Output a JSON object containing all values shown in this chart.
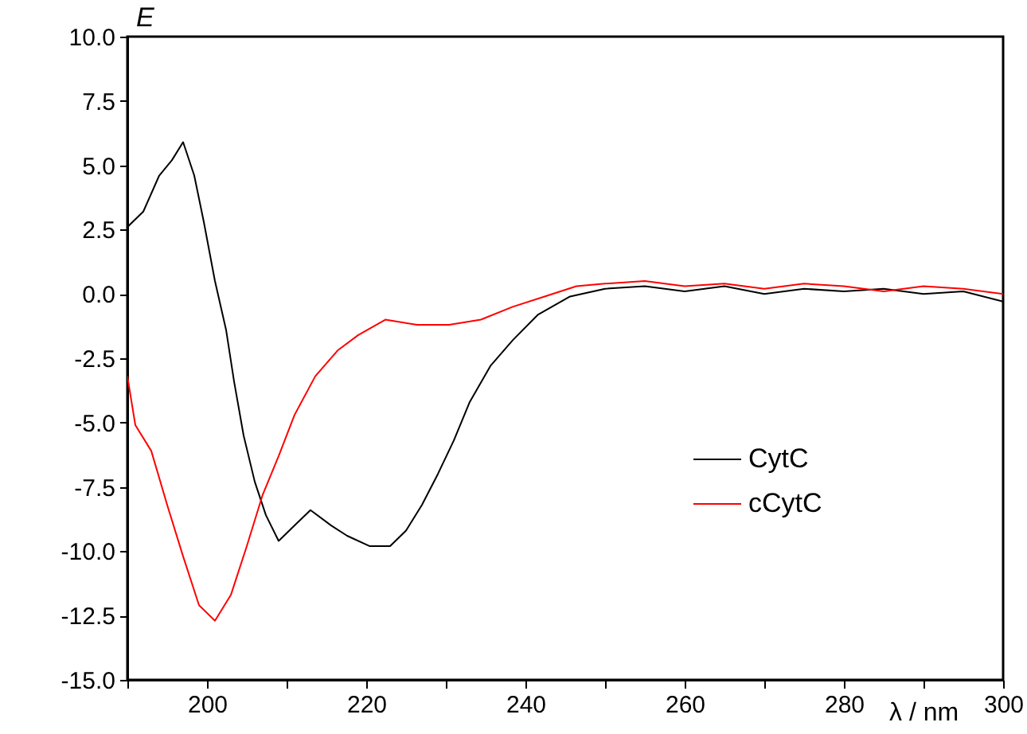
{
  "chart_data": {
    "type": "line",
    "xlabel": "λ / nm",
    "ylabel": "E",
    "xlim": [
      190,
      300
    ],
    "ylim": [
      -15,
      10
    ],
    "xticks": [
      {
        "value": 190,
        "label": null
      },
      200,
      {
        "value": 210,
        "label": null
      },
      220,
      {
        "value": 230,
        "label": null
      },
      240,
      {
        "value": 250,
        "label": null
      },
      260,
      {
        "value": 270,
        "label": null
      },
      280,
      {
        "value": 290,
        "label": null
      },
      300
    ],
    "yticks": [
      {
        "value": -15,
        "label": "-15.0"
      },
      {
        "value": -12.5,
        "label": "-12.5"
      },
      {
        "value": -10,
        "label": "-10.0"
      },
      {
        "value": -7.5,
        "label": "-7.5"
      },
      {
        "value": -5,
        "label": "-5.0"
      },
      {
        "value": -2.5,
        "label": "-2.5"
      },
      {
        "value": 0,
        "label": "0.0"
      },
      {
        "value": 2.5,
        "label": "2.5"
      },
      {
        "value": 5,
        "label": "5.0"
      },
      {
        "value": 7.5,
        "label": "7.5"
      },
      {
        "value": 10,
        "label": "10.0"
      }
    ],
    "grid": false,
    "legend": "right",
    "line_style": "solid",
    "marker": "none",
    "series": [
      {
        "name": "CytC",
        "color": "#000000",
        "x": [
          190,
          192,
          194,
          195.6,
          197,
          198.4,
          199.6,
          201,
          202.4,
          203.4,
          204.6,
          206,
          207.4,
          209,
          211,
          213,
          215.6,
          217.6,
          220.4,
          223,
          225,
          227,
          229,
          231,
          233,
          235.6,
          238.4,
          241.6,
          245.6,
          250,
          255,
          260,
          265,
          270,
          275,
          280,
          285,
          290,
          295,
          300
        ],
        "values": [
          2.6,
          3.2,
          4.6,
          5.2,
          5.9,
          4.6,
          2.8,
          0.5,
          -1.4,
          -3.4,
          -5.5,
          -7.3,
          -8.6,
          -9.6,
          -9.0,
          -8.4,
          -9.0,
          -9.4,
          -9.8,
          -9.8,
          -9.2,
          -8.2,
          -7.0,
          -5.7,
          -4.2,
          -2.8,
          -1.8,
          -0.8,
          -0.1,
          0.2,
          0.3,
          0.1,
          0.3,
          0.0,
          0.2,
          0.1,
          0.2,
          0.0,
          0.1,
          -0.3
        ]
      },
      {
        "name": "cCytC",
        "color": "#ff0000",
        "x": [
          190,
          191,
          193,
          195,
          197,
          199,
          201,
          203,
          205,
          207,
          209,
          211,
          213.6,
          216.4,
          219,
          222.4,
          226.4,
          230.4,
          234.4,
          238.4,
          242.4,
          246.4,
          250,
          255,
          260,
          265,
          270,
          275,
          280,
          285,
          290,
          295,
          300
        ],
        "values": [
          -3.2,
          -5.1,
          -6.1,
          -8.2,
          -10.2,
          -12.1,
          -12.7,
          -11.7,
          -9.8,
          -7.8,
          -6.3,
          -4.7,
          -3.2,
          -2.2,
          -1.6,
          -1.0,
          -1.2,
          -1.2,
          -1.0,
          -0.5,
          -0.1,
          0.3,
          0.4,
          0.5,
          0.3,
          0.4,
          0.2,
          0.4,
          0.3,
          0.1,
          0.3,
          0.2,
          0.0
        ]
      }
    ]
  }
}
